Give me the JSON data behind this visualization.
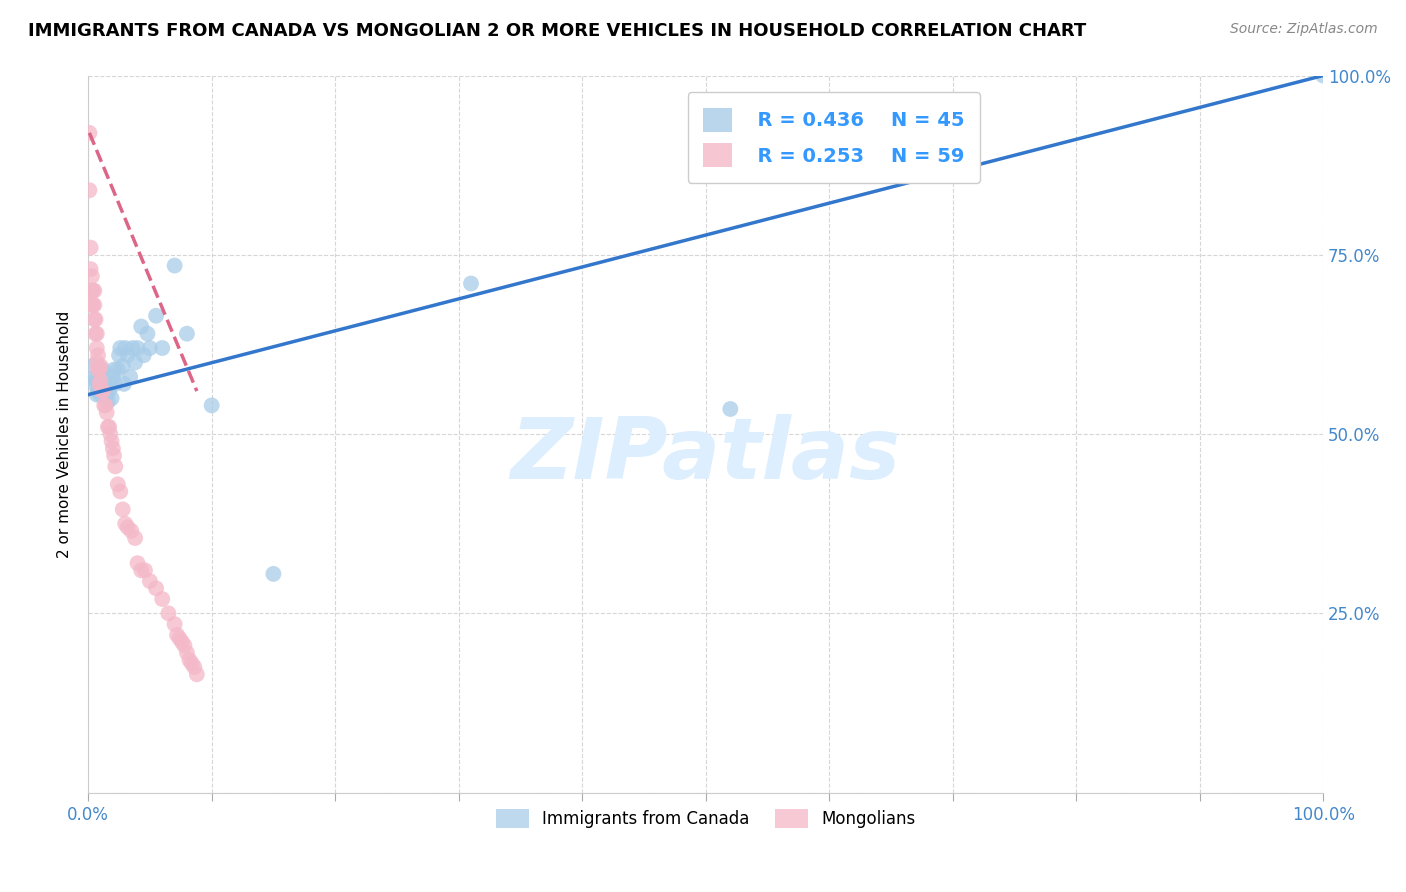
{
  "title": "IMMIGRANTS FROM CANADA VS MONGOLIAN 2 OR MORE VEHICLES IN HOUSEHOLD CORRELATION CHART",
  "source": "Source: ZipAtlas.com",
  "ylabel": "2 or more Vehicles in Household",
  "legend_blue_r": "R = 0.436",
  "legend_blue_n": "N = 45",
  "legend_pink_r": "R = 0.253",
  "legend_pink_n": "N = 59",
  "legend_blue_label": "Immigrants from Canada",
  "legend_pink_label": "Mongolians",
  "blue_color": "#a8cce8",
  "pink_color": "#f4b8c8",
  "blue_line_color": "#3377cc",
  "pink_line_color": "#dd6688",
  "watermark_color": "#ddeeff",
  "blue_scatter_x": [
    0.003,
    0.005,
    0.006,
    0.006,
    0.007,
    0.008,
    0.008,
    0.009,
    0.01,
    0.011,
    0.012,
    0.013,
    0.014,
    0.015,
    0.016,
    0.017,
    0.018,
    0.019,
    0.02,
    0.021,
    0.022,
    0.024,
    0.025,
    0.026,
    0.028,
    0.029,
    0.03,
    0.032,
    0.034,
    0.036,
    0.038,
    0.04,
    0.043,
    0.045,
    0.048,
    0.05,
    0.055,
    0.06,
    0.07,
    0.08,
    0.1,
    0.15,
    0.31,
    0.52,
    1.0
  ],
  "blue_scatter_y": [
    0.595,
    0.57,
    0.575,
    0.58,
    0.555,
    0.56,
    0.57,
    0.59,
    0.555,
    0.565,
    0.59,
    0.575,
    0.56,
    0.555,
    0.545,
    0.56,
    0.57,
    0.55,
    0.58,
    0.59,
    0.57,
    0.59,
    0.61,
    0.62,
    0.595,
    0.57,
    0.62,
    0.61,
    0.58,
    0.62,
    0.6,
    0.62,
    0.65,
    0.61,
    0.64,
    0.62,
    0.665,
    0.62,
    0.735,
    0.64,
    0.54,
    0.305,
    0.71,
    0.535,
    1.0
  ],
  "pink_scatter_x": [
    0.001,
    0.001,
    0.002,
    0.002,
    0.003,
    0.003,
    0.003,
    0.004,
    0.004,
    0.005,
    0.005,
    0.005,
    0.006,
    0.006,
    0.007,
    0.007,
    0.007,
    0.008,
    0.008,
    0.009,
    0.009,
    0.01,
    0.01,
    0.011,
    0.012,
    0.013,
    0.014,
    0.015,
    0.016,
    0.017,
    0.018,
    0.019,
    0.02,
    0.021,
    0.022,
    0.024,
    0.026,
    0.028,
    0.03,
    0.032,
    0.035,
    0.038,
    0.04,
    0.043,
    0.046,
    0.05,
    0.055,
    0.06,
    0.065,
    0.07,
    0.072,
    0.074,
    0.076,
    0.078,
    0.08,
    0.082,
    0.084,
    0.086,
    0.088
  ],
  "pink_scatter_y": [
    0.92,
    0.84,
    0.76,
    0.73,
    0.72,
    0.7,
    0.68,
    0.7,
    0.68,
    0.7,
    0.68,
    0.66,
    0.66,
    0.64,
    0.64,
    0.62,
    0.6,
    0.61,
    0.59,
    0.59,
    0.57,
    0.595,
    0.575,
    0.56,
    0.56,
    0.54,
    0.54,
    0.53,
    0.51,
    0.51,
    0.5,
    0.49,
    0.48,
    0.47,
    0.455,
    0.43,
    0.42,
    0.395,
    0.375,
    0.37,
    0.365,
    0.355,
    0.32,
    0.31,
    0.31,
    0.295,
    0.285,
    0.27,
    0.25,
    0.235,
    0.22,
    0.215,
    0.21,
    0.205,
    0.195,
    0.185,
    0.18,
    0.175,
    0.165
  ],
  "blue_line_x": [
    0.0,
    1.0
  ],
  "blue_line_y": [
    0.555,
    1.0
  ],
  "pink_line_x": [
    0.001,
    0.088
  ],
  "pink_line_y": [
    0.92,
    0.56
  ],
  "xlim": [
    0.0,
    1.0
  ],
  "ylim": [
    0.0,
    1.0
  ],
  "xtick_positions": [
    0.0,
    0.1,
    0.2,
    0.3,
    0.4,
    0.5,
    0.6,
    0.7,
    0.8,
    0.9,
    1.0
  ],
  "xticklabels": [
    "0.0%",
    "",
    "",
    "",
    "",
    "",
    "",
    "",
    "",
    "",
    "100.0%"
  ],
  "ytick_positions": [
    0.0,
    0.25,
    0.5,
    0.75,
    1.0
  ],
  "yticklabels_right": [
    "",
    "25.0%",
    "50.0%",
    "75.0%",
    "100.0%"
  ],
  "grid_color": "#cccccc",
  "background_color": "#ffffff",
  "title_fontsize": 13,
  "label_color": "#3399ff",
  "tick_label_color": "#4488cc"
}
